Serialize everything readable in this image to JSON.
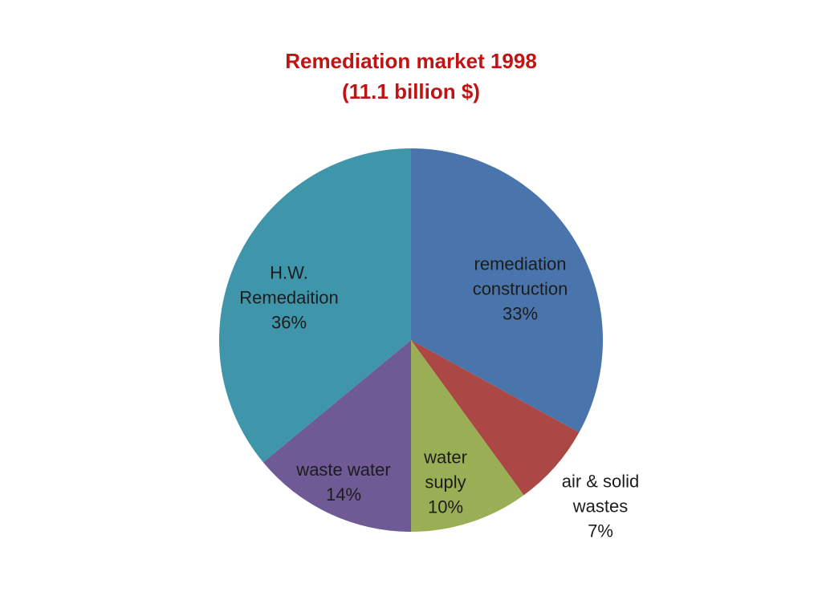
{
  "title": {
    "line1": "Remediation market 1998",
    "line2": "(11.1 billion $)",
    "color": "#c01414"
  },
  "chart_data": {
    "type": "pie",
    "title": "Remediation market 1998 (11.1 billion $)",
    "total": "11.1 billion $",
    "start_angle_deg": 0,
    "direction": "clockwise",
    "legend": "none",
    "label_text_color": "#1c1c1c",
    "slices": [
      {
        "id": "remediation-construction",
        "lines": [
          "remediation",
          "construction"
        ],
        "pct": "33%",
        "value": 33,
        "color": "#4a74ac",
        "label_position": "inside"
      },
      {
        "id": "air-solid-wastes",
        "lines": [
          "air & solid",
          "wastes"
        ],
        "pct": "7%",
        "value": 7,
        "color": "#ab4744",
        "label_position": "outside"
      },
      {
        "id": "water-suply",
        "lines": [
          "water",
          "suply"
        ],
        "pct": "10%",
        "value": 10,
        "color": "#9aaf55",
        "label_position": "inside"
      },
      {
        "id": "waste-water",
        "lines": [
          "waste water"
        ],
        "pct": "14%",
        "value": 14,
        "color": "#6e5a94",
        "label_position": "inside"
      },
      {
        "id": "hw-remedaition",
        "lines": [
          "H.W.",
          "Remedaition"
        ],
        "pct": "36%",
        "value": 36,
        "color": "#3f96ab",
        "label_position": "inside"
      }
    ]
  }
}
